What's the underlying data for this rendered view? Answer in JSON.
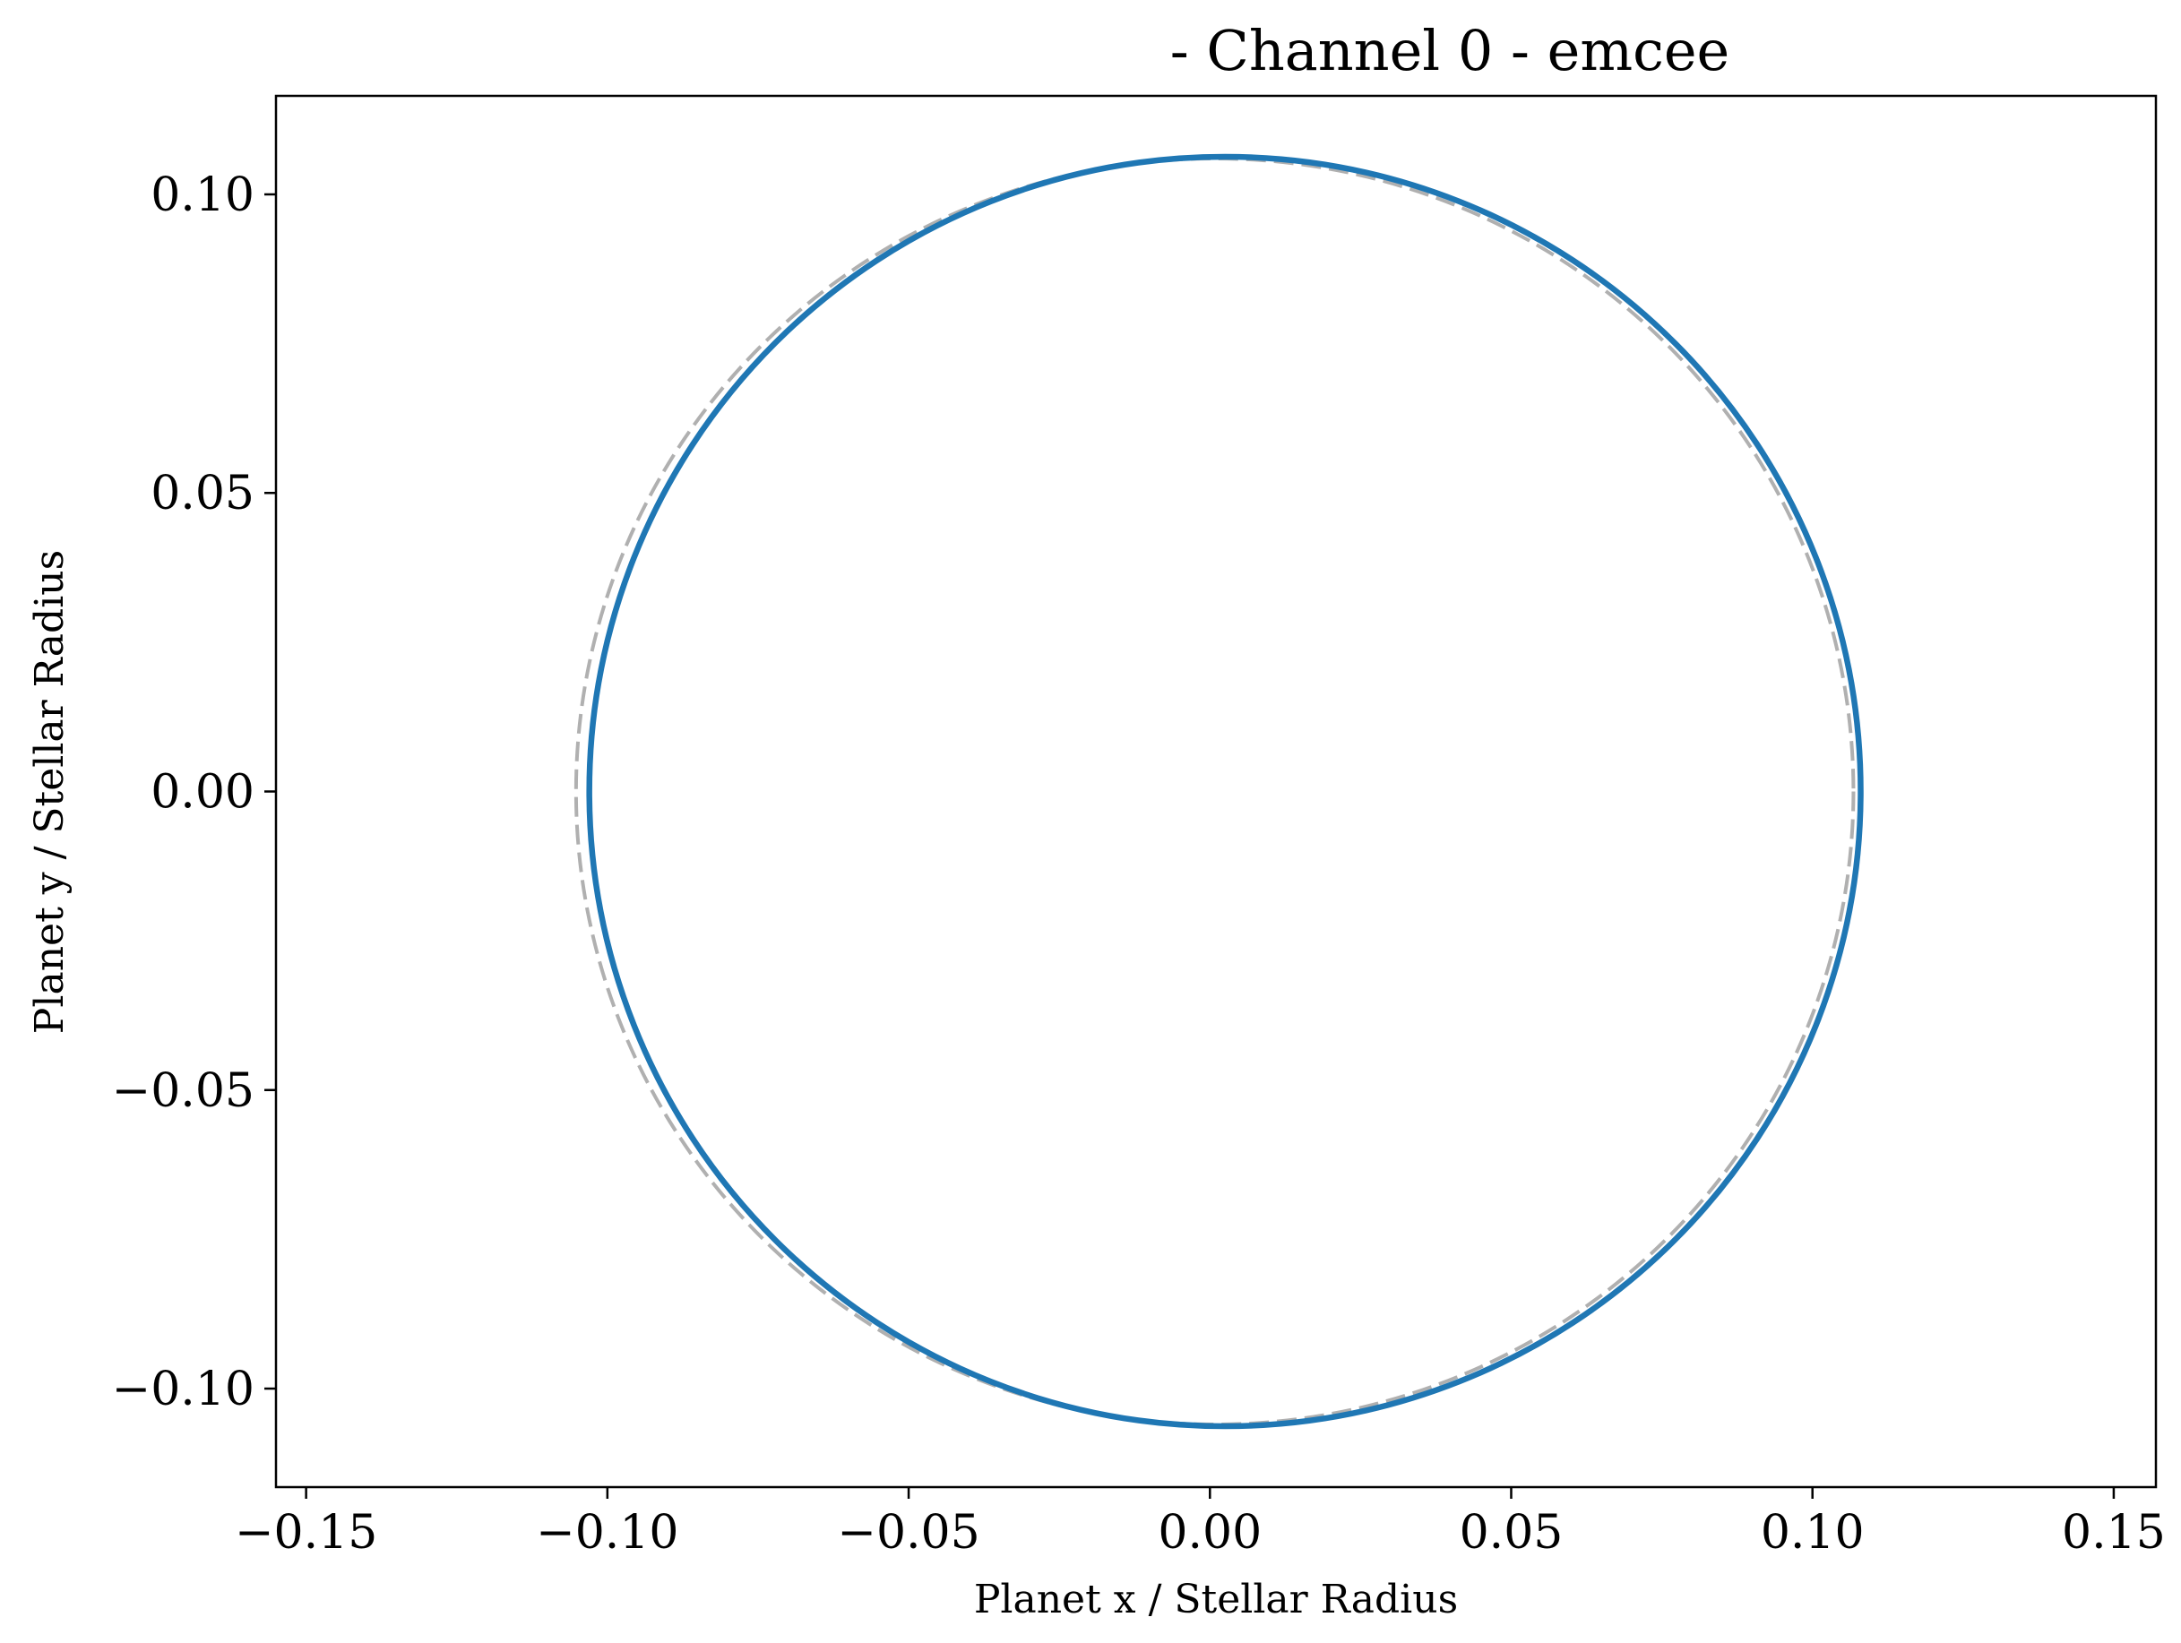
{
  "chart_data": {
    "type": "line",
    "title": "- Channel 0 - emcee",
    "xlabel": "Planet x / Stellar Radius",
    "ylabel": "Planet y / Stellar Radius",
    "xlim": [
      -0.155,
      0.157
    ],
    "ylim": [
      -0.1165,
      0.1165
    ],
    "xticks": [
      -0.15,
      -0.1,
      -0.05,
      0.0,
      0.05,
      0.1,
      0.15
    ],
    "xtick_labels": [
      "−0.15",
      "−0.10",
      "−0.05",
      "0.00",
      "0.05",
      "0.10",
      "0.15"
    ],
    "yticks": [
      -0.1,
      -0.05,
      0.0,
      0.05,
      0.1
    ],
    "ytick_labels": [
      "−0.10",
      "−0.05",
      "0.00",
      "0.05",
      "0.10"
    ],
    "grid": false,
    "series": [
      {
        "shape": "circle",
        "center": [
          0.0025,
          0.0
        ],
        "radius_x": 0.1055,
        "radius_y": 0.1063,
        "color": "#1f77b4",
        "style": "solid"
      },
      {
        "shape": "circle",
        "center": [
          0.0008,
          0.0
        ],
        "radius_x": 0.106,
        "radius_y": 0.106,
        "color": "#b0b0b0",
        "style": "dashed"
      }
    ]
  }
}
